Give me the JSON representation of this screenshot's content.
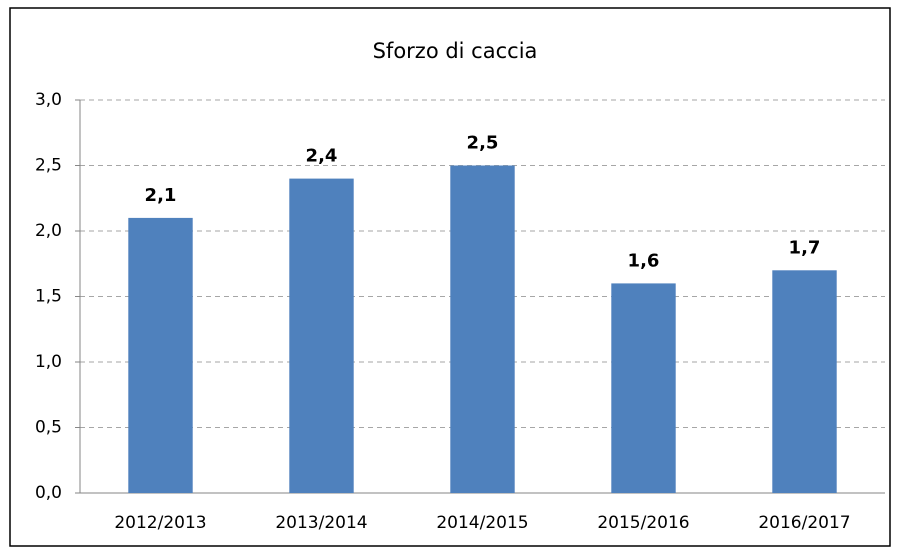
{
  "chart_data": {
    "type": "bar",
    "title": "Sforzo di caccia",
    "categories": [
      "2012/2013",
      "2013/2014",
      "2014/2015",
      "2015/2016",
      "2016/2017"
    ],
    "values": [
      2.1,
      2.4,
      2.5,
      1.6,
      1.7
    ],
    "value_labels": [
      "2,1",
      "2,4",
      "2,5",
      "1,6",
      "1,7"
    ],
    "color": "#4f81bd",
    "ylim": [
      0,
      3
    ],
    "yticks": [
      {
        "value": 0,
        "label": "0,0"
      },
      {
        "value": 0.5,
        "label": "0,5"
      },
      {
        "value": 1,
        "label": "1,0"
      },
      {
        "value": 1.5,
        "label": "1,5"
      },
      {
        "value": 2,
        "label": "2,0"
      },
      {
        "value": 2.5,
        "label": "2,5"
      },
      {
        "value": 3,
        "label": "3,0"
      }
    ],
    "grid": true
  }
}
